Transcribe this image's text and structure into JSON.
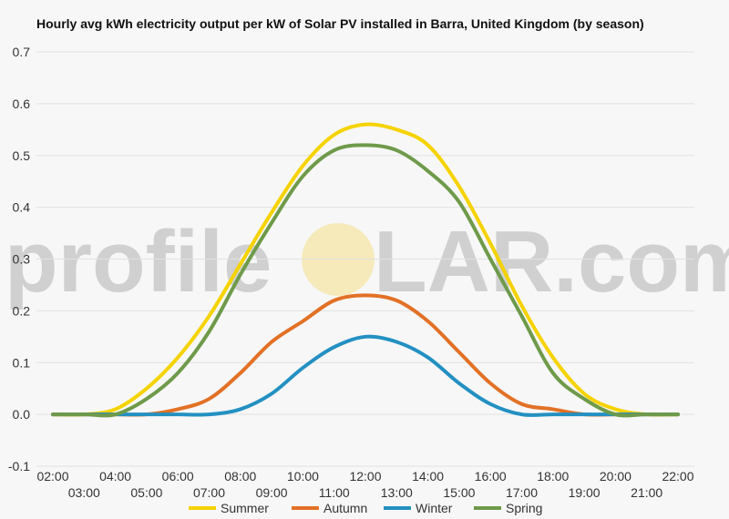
{
  "chart_data": {
    "type": "line",
    "title": "Hourly avg kWh electricity output per kW of Solar PV installed in Barra, United Kingdom (by season)",
    "watermark": {
      "pre": "profile",
      "post": "LAR.com",
      "sun_color": "#f5e08a"
    },
    "x": [
      "02:00",
      "03:00",
      "04:00",
      "05:00",
      "06:00",
      "07:00",
      "08:00",
      "09:00",
      "10:00",
      "11:00",
      "12:00",
      "13:00",
      "14:00",
      "15:00",
      "16:00",
      "17:00",
      "18:00",
      "19:00",
      "20:00",
      "21:00",
      "22:00"
    ],
    "ylim": [
      -0.1,
      0.7
    ],
    "yticks": [
      "0.7",
      "0.6",
      "0.5",
      "0.4",
      "0.3",
      "0.2",
      "0.1",
      "0.0",
      "-0.1"
    ],
    "grid": true,
    "legend_position": "bottom",
    "series": [
      {
        "name": "Summer",
        "color": "#f5d300",
        "values": [
          0,
          0,
          0.01,
          0.05,
          0.11,
          0.19,
          0.29,
          0.39,
          0.48,
          0.54,
          0.56,
          0.55,
          0.52,
          0.44,
          0.33,
          0.21,
          0.11,
          0.04,
          0.01,
          0,
          0
        ]
      },
      {
        "name": "Autumn",
        "color": "#e27126",
        "values": [
          0,
          0,
          0,
          0,
          0.01,
          0.03,
          0.08,
          0.14,
          0.18,
          0.22,
          0.23,
          0.22,
          0.18,
          0.12,
          0.06,
          0.02,
          0.01,
          0,
          0,
          0,
          0
        ]
      },
      {
        "name": "Winter",
        "color": "#2390c2",
        "values": [
          0,
          0,
          0,
          0,
          0,
          0,
          0.01,
          0.04,
          0.09,
          0.13,
          0.15,
          0.14,
          0.11,
          0.06,
          0.02,
          0,
          0,
          0,
          0,
          0,
          0
        ]
      },
      {
        "name": "Spring",
        "color": "#6e9a4a",
        "values": [
          0,
          0,
          0,
          0.03,
          0.08,
          0.16,
          0.27,
          0.37,
          0.46,
          0.51,
          0.52,
          0.51,
          0.47,
          0.41,
          0.3,
          0.19,
          0.08,
          0.03,
          0,
          0,
          0
        ]
      }
    ]
  }
}
